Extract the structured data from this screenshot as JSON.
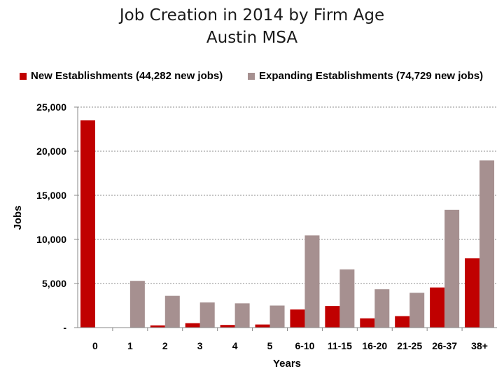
{
  "chart_data": {
    "type": "bar",
    "title": "Job Creation in 2014 by Firm Age",
    "subtitle": "Austin MSA",
    "xlabel": "Years",
    "ylabel": "Jobs",
    "categories": [
      "0",
      "1",
      "2",
      "3",
      "4",
      "5",
      "6-10",
      "11-15",
      "16-20",
      "21-25",
      "26-37",
      "38+"
    ],
    "ylim": [
      0,
      25000
    ],
    "yticks": [
      0,
      5000,
      10000,
      15000,
      20000,
      25000
    ],
    "ytick_labels": [
      "-",
      "5,000",
      "10,000",
      "15,000",
      "20,000",
      "25,000"
    ],
    "grid": true,
    "legend_position": "top",
    "series": [
      {
        "name": "New Establishments (44,282 new jobs)",
        "color": "#c00000",
        "values": [
          23500,
          0,
          250,
          500,
          300,
          350,
          2050,
          2450,
          1050,
          1300,
          4550,
          7850
        ]
      },
      {
        "name": "Expanding Establishments (74,729 new jobs)",
        "color": "#a69090",
        "values": [
          0,
          5300,
          3600,
          2850,
          2750,
          2500,
          10450,
          6600,
          4350,
          3950,
          13350,
          18950
        ]
      }
    ]
  }
}
